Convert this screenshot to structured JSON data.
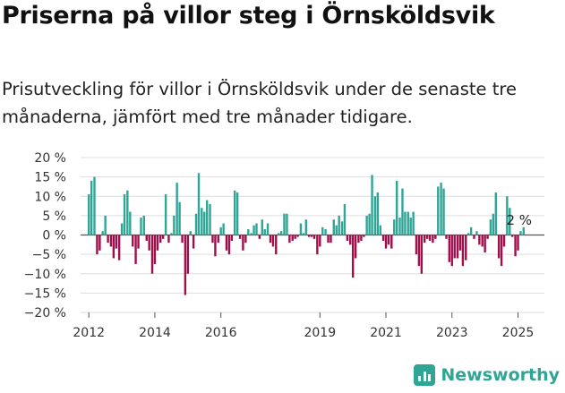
{
  "title": "Priserna på villor steg i Örnsköldsvik",
  "subtitle": "Prisutveckling för villor i Örnsköldsvik under de senaste tre månaderna, jämfört med tre månader tidigare.",
  "brand": "Newsworthy",
  "colors": {
    "positive": "#2fa596",
    "negative": "#a00e4b",
    "grid": "#dddddd",
    "brand": "#2fa596"
  },
  "chart_data": {
    "type": "bar",
    "title": "",
    "xlabel": "",
    "ylabel": "",
    "ylim": [
      -20,
      20
    ],
    "y_ticks": [
      20,
      15,
      10,
      5,
      0,
      -5,
      -10,
      -15,
      -20
    ],
    "y_tick_labels": [
      "20 %",
      "15 %",
      "10 %",
      "5 %",
      "0 %",
      "−5 %",
      "−10 %",
      "−15 %",
      "−20 %"
    ],
    "x_start": 2011.75,
    "x_end": 2025.8,
    "x_ticks": [
      2012,
      2014,
      2016,
      2019,
      2021,
      2023,
      2025
    ],
    "x_tick_labels": [
      "2012",
      "2014",
      "2016",
      "2019",
      "2021",
      "2023",
      "2025"
    ],
    "grid": true,
    "annotation": {
      "text": "2 %",
      "x": 2025.0,
      "y": 2
    },
    "bar_width_years": 0.065,
    "series": [
      {
        "values": [
          [
            2012.0,
            10.5
          ],
          [
            2012.08,
            14.0
          ],
          [
            2012.17,
            15.0
          ],
          [
            2012.25,
            -5.0
          ],
          [
            2012.33,
            -4.0
          ],
          [
            2012.42,
            1.0
          ],
          [
            2012.5,
            5.0
          ],
          [
            2012.58,
            -2.0
          ],
          [
            2012.67,
            -3.0
          ],
          [
            2012.75,
            -6.0
          ],
          [
            2012.83,
            -3.5
          ],
          [
            2012.92,
            -6.5
          ],
          [
            2013.0,
            3.0
          ],
          [
            2013.08,
            10.5
          ],
          [
            2013.17,
            11.5
          ],
          [
            2013.25,
            6.0
          ],
          [
            2013.33,
            -3.0
          ],
          [
            2013.42,
            -7.5
          ],
          [
            2013.5,
            -3.5
          ],
          [
            2013.58,
            4.5
          ],
          [
            2013.67,
            5.0
          ],
          [
            2013.75,
            -1.5
          ],
          [
            2013.83,
            -4.0
          ],
          [
            2013.92,
            -10.0
          ],
          [
            2014.0,
            -7.5
          ],
          [
            2014.08,
            -4.0
          ],
          [
            2014.17,
            -2.0
          ],
          [
            2014.25,
            -1.0
          ],
          [
            2014.33,
            10.5
          ],
          [
            2014.42,
            -2.0
          ],
          [
            2014.5,
            0.5
          ],
          [
            2014.58,
            5.0
          ],
          [
            2014.67,
            13.5
          ],
          [
            2014.75,
            8.5
          ],
          [
            2014.83,
            -2.0
          ],
          [
            2014.92,
            -15.5
          ],
          [
            2015.0,
            -10.0
          ],
          [
            2015.08,
            1.0
          ],
          [
            2015.17,
            -3.5
          ],
          [
            2015.25,
            5.5
          ],
          [
            2015.33,
            16.0
          ],
          [
            2015.42,
            7.0
          ],
          [
            2015.5,
            6.0
          ],
          [
            2015.58,
            9.0
          ],
          [
            2015.67,
            8.0
          ],
          [
            2015.75,
            -2.0
          ],
          [
            2015.83,
            -5.5
          ],
          [
            2015.92,
            -2.0
          ],
          [
            2016.0,
            2.0
          ],
          [
            2016.08,
            3.0
          ],
          [
            2016.17,
            -4.0
          ],
          [
            2016.25,
            -5.0
          ],
          [
            2016.33,
            -1.5
          ],
          [
            2016.42,
            11.5
          ],
          [
            2016.5,
            11.0
          ],
          [
            2016.58,
            -1.0
          ],
          [
            2016.67,
            -4.0
          ],
          [
            2016.75,
            -2.0
          ],
          [
            2016.83,
            1.5
          ],
          [
            2016.92,
            0.5
          ],
          [
            2017.0,
            2.5
          ],
          [
            2017.08,
            3.0
          ],
          [
            2017.17,
            -1.0
          ],
          [
            2017.25,
            4.0
          ],
          [
            2017.33,
            1.5
          ],
          [
            2017.42,
            3.0
          ],
          [
            2017.5,
            -2.0
          ],
          [
            2017.58,
            -3.0
          ],
          [
            2017.67,
            -5.0
          ],
          [
            2017.75,
            0.5
          ],
          [
            2017.83,
            1.0
          ],
          [
            2017.92,
            5.5
          ],
          [
            2018.0,
            5.5
          ],
          [
            2018.08,
            -2.0
          ],
          [
            2018.17,
            -1.5
          ],
          [
            2018.25,
            -1.0
          ],
          [
            2018.33,
            -0.5
          ],
          [
            2018.42,
            3.0
          ],
          [
            2018.5,
            0.5
          ],
          [
            2018.58,
            4.0
          ],
          [
            2018.67,
            -0.5
          ],
          [
            2018.75,
            -0.5
          ],
          [
            2018.83,
            -1.0
          ],
          [
            2018.92,
            -5.0
          ],
          [
            2019.0,
            -3.0
          ],
          [
            2019.08,
            2.0
          ],
          [
            2019.17,
            1.5
          ],
          [
            2019.25,
            -2.0
          ],
          [
            2019.33,
            -2.0
          ],
          [
            2019.42,
            4.0
          ],
          [
            2019.5,
            2.5
          ],
          [
            2019.58,
            5.0
          ],
          [
            2019.67,
            3.5
          ],
          [
            2019.75,
            8.0
          ],
          [
            2019.83,
            -1.5
          ],
          [
            2019.92,
            -2.5
          ],
          [
            2020.0,
            -11.0
          ],
          [
            2020.08,
            -6.0
          ],
          [
            2020.17,
            -2.0
          ],
          [
            2020.25,
            -1.5
          ],
          [
            2020.33,
            -0.5
          ],
          [
            2020.42,
            5.0
          ],
          [
            2020.5,
            5.5
          ],
          [
            2020.58,
            15.5
          ],
          [
            2020.67,
            10.0
          ],
          [
            2020.75,
            11.0
          ],
          [
            2020.83,
            2.5
          ],
          [
            2020.92,
            -1.5
          ],
          [
            2021.0,
            -3.5
          ],
          [
            2021.08,
            -2.5
          ],
          [
            2021.17,
            -3.5
          ],
          [
            2021.25,
            4.0
          ],
          [
            2021.33,
            14.0
          ],
          [
            2021.42,
            4.5
          ],
          [
            2021.5,
            12.0
          ],
          [
            2021.58,
            6.0
          ],
          [
            2021.67,
            6.0
          ],
          [
            2021.75,
            4.5
          ],
          [
            2021.83,
            6.0
          ],
          [
            2021.92,
            -5.0
          ],
          [
            2022.0,
            -8.0
          ],
          [
            2022.08,
            -10.0
          ],
          [
            2022.17,
            -2.0
          ],
          [
            2022.25,
            -1.0
          ],
          [
            2022.33,
            -1.5
          ],
          [
            2022.42,
            -2.0
          ],
          [
            2022.5,
            -1.0
          ],
          [
            2022.58,
            12.5
          ],
          [
            2022.67,
            13.5
          ],
          [
            2022.75,
            12.0
          ],
          [
            2022.83,
            -1.0
          ],
          [
            2022.92,
            -7.0
          ],
          [
            2023.0,
            -8.0
          ],
          [
            2023.08,
            -6.0
          ],
          [
            2023.17,
            -6.0
          ],
          [
            2023.25,
            -4.0
          ],
          [
            2023.33,
            -8.0
          ],
          [
            2023.42,
            -6.5
          ],
          [
            2023.5,
            0.5
          ],
          [
            2023.58,
            2.0
          ],
          [
            2023.67,
            -1.0
          ],
          [
            2023.75,
            1.0
          ],
          [
            2023.83,
            -2.5
          ],
          [
            2023.92,
            -3.0
          ],
          [
            2024.0,
            -4.5
          ],
          [
            2024.08,
            -1.0
          ],
          [
            2024.17,
            4.0
          ],
          [
            2024.25,
            5.5
          ],
          [
            2024.33,
            11.0
          ],
          [
            2024.42,
            -6.0
          ],
          [
            2024.5,
            -8.0
          ],
          [
            2024.58,
            -3.0
          ],
          [
            2024.67,
            10.0
          ],
          [
            2024.75,
            7.0
          ],
          [
            2024.83,
            -0.5
          ],
          [
            2024.92,
            -5.5
          ],
          [
            2025.0,
            -4.0
          ],
          [
            2025.08,
            1.0
          ],
          [
            2025.17,
            2.0
          ]
        ]
      }
    ]
  }
}
